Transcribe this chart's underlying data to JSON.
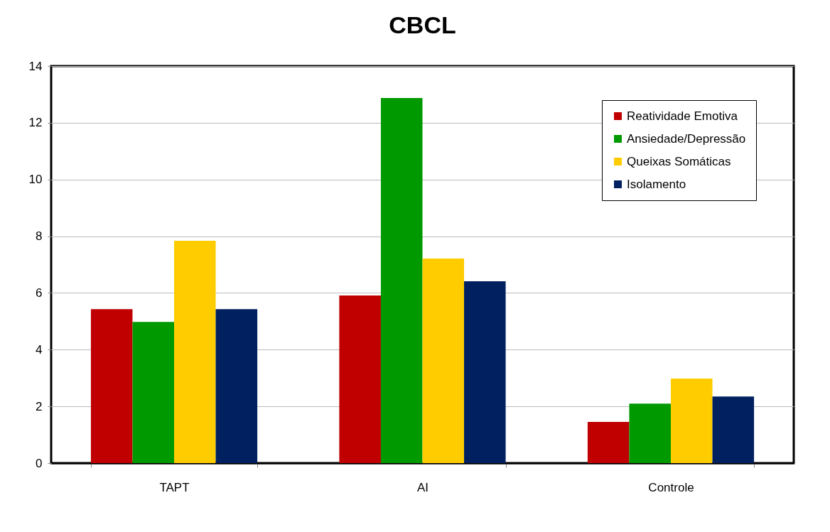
{
  "chart_data": {
    "type": "bar",
    "title": "CBCL",
    "categories": [
      "TAPT",
      "AI",
      "Controle"
    ],
    "series": [
      {
        "name": "Reatividade Emotiva",
        "color": "#c00000",
        "values": [
          5.43,
          5.91,
          1.45
        ]
      },
      {
        "name": "Ansiedade/Depressão",
        "color": "#009900",
        "values": [
          4.98,
          12.87,
          2.1
        ]
      },
      {
        "name": "Queixas Somáticas",
        "color": "#ffcc00",
        "values": [
          7.84,
          7.21,
          2.98
        ]
      },
      {
        "name": "Isolamento",
        "color": "#002060",
        "values": [
          5.43,
          6.41,
          2.35
        ]
      }
    ],
    "ylim": [
      0,
      14
    ],
    "yticks": [
      0,
      2,
      4,
      6,
      8,
      10,
      12,
      14
    ],
    "grid": "y",
    "legend": "top right"
  }
}
